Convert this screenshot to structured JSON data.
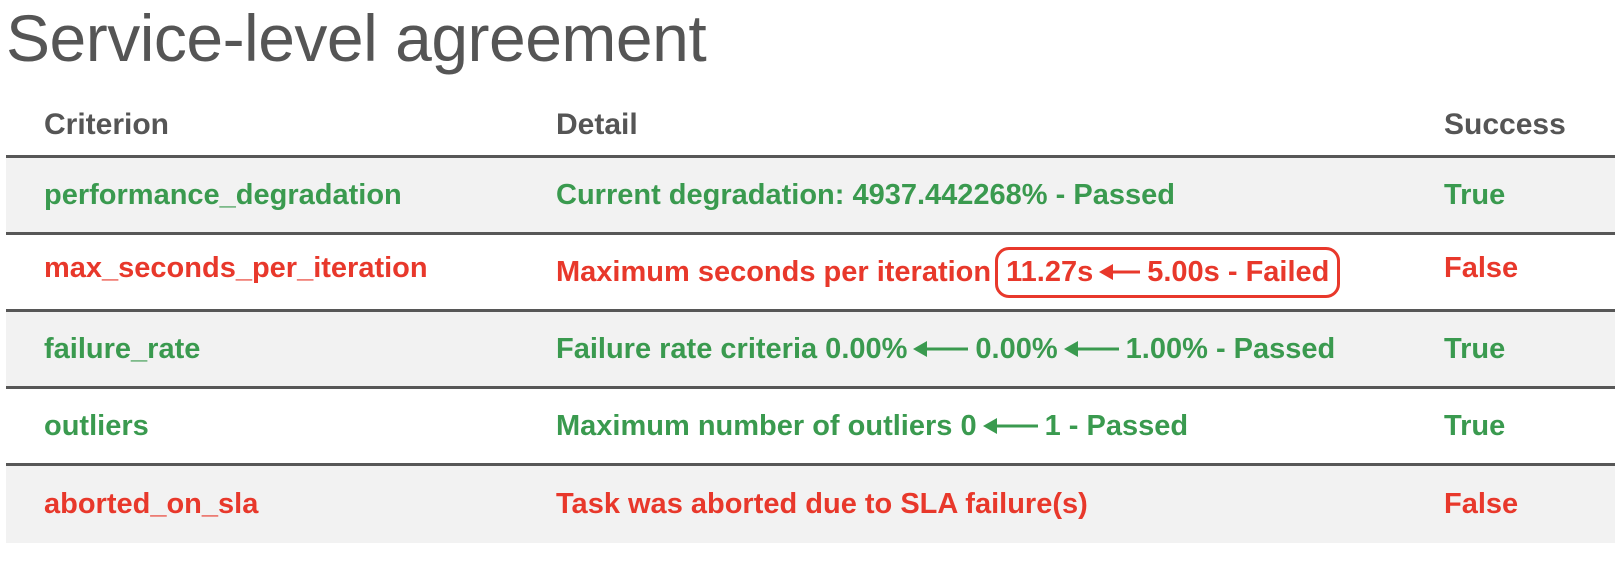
{
  "title": "Service-level agreement",
  "columns": {
    "criterion": "Criterion",
    "detail": "Detail",
    "success": "Success"
  },
  "colors": {
    "pass": "#3a9a4f",
    "fail": "#e8382b"
  },
  "rows": [
    {
      "criterion": "performance_degradation",
      "detail": "Current degradation: 4937.442268% - Passed",
      "success": "True",
      "status": "pass"
    },
    {
      "criterion": "max_seconds_per_iteration",
      "detail_prefix": "Maximum seconds per iteration",
      "detail_value": "11.27s",
      "detail_limit": "5.00s - Failed",
      "success": "False",
      "status": "fail"
    },
    {
      "criterion": "failure_rate",
      "detail_prefix": "Failure rate criteria 0.00%",
      "detail_mid": "0.00%",
      "detail_limit": "1.00% - Passed",
      "success": "True",
      "status": "pass"
    },
    {
      "criterion": "outliers",
      "detail_prefix": "Maximum number of outliers 0",
      "detail_limit": "1 - Passed",
      "success": "True",
      "status": "pass"
    },
    {
      "criterion": "aborted_on_sla",
      "detail": "Task was aborted due to SLA failure(s)",
      "success": "False",
      "status": "fail"
    }
  ]
}
